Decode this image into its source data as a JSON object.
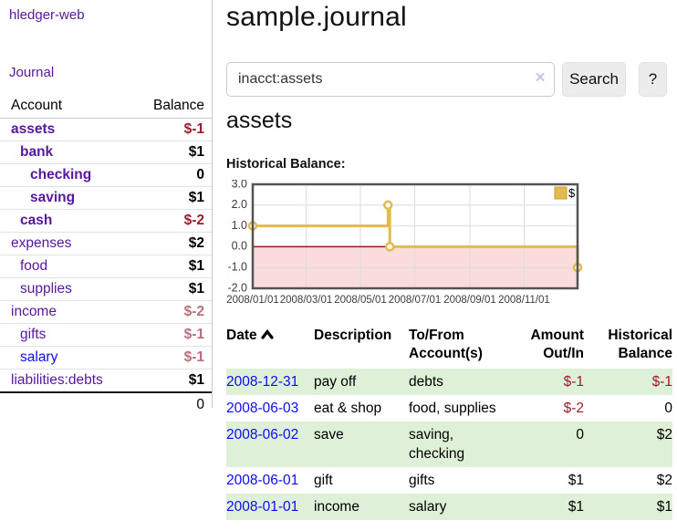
{
  "sidebar": {
    "brand": "hledger-web",
    "nav": {
      "journal": "Journal"
    },
    "accounts_table": {
      "headers": {
        "account": "Account",
        "balance": "Balance"
      },
      "rows": [
        {
          "name": "assets",
          "indent": 1,
          "bold": true,
          "link": "purple",
          "balance": "$-1",
          "balance_style": "neg-strong"
        },
        {
          "name": "bank",
          "indent": 2,
          "bold": true,
          "link": "purple",
          "balance": "$1",
          "balance_style": "pos"
        },
        {
          "name": "checking",
          "indent": 3,
          "bold": true,
          "link": "purple",
          "balance": "0",
          "balance_style": "pos"
        },
        {
          "name": "saving",
          "indent": 3,
          "bold": true,
          "link": "purple",
          "balance": "$1",
          "balance_style": "pos"
        },
        {
          "name": "cash",
          "indent": 2,
          "bold": true,
          "link": "purple",
          "balance": "$-2",
          "balance_style": "neg-strong"
        },
        {
          "name": "expenses",
          "indent": 1,
          "bold": false,
          "link": "purple",
          "balance": "$2",
          "balance_style": "pos"
        },
        {
          "name": "food",
          "indent": 2,
          "bold": false,
          "link": "purple",
          "balance": "$1",
          "balance_style": "pos"
        },
        {
          "name": "supplies",
          "indent": 2,
          "bold": false,
          "link": "purple",
          "balance": "$1",
          "balance_style": "pos"
        },
        {
          "name": "income",
          "indent": 1,
          "bold": false,
          "link": "purple",
          "balance": "$-2",
          "balance_style": "neg-soft"
        },
        {
          "name": "gifts",
          "indent": 2,
          "bold": false,
          "link": "purple",
          "balance": "$-1",
          "balance_style": "neg-soft"
        },
        {
          "name": "salary",
          "indent": 2,
          "bold": false,
          "link": "blue",
          "balance": "$-1",
          "balance_style": "neg-soft"
        },
        {
          "name": "liabilities:debts",
          "indent": 1,
          "bold": false,
          "link": "purple",
          "balance": "$1",
          "balance_style": "pos"
        }
      ],
      "total": "0"
    }
  },
  "header": {
    "title": "sample.journal"
  },
  "search": {
    "query": "inacct:assets",
    "clear_icon": "×",
    "button": "Search",
    "help_button": "?"
  },
  "account_page": {
    "heading": "assets",
    "chart_label": "Historical Balance:"
  },
  "chart_data": {
    "type": "line",
    "step": true,
    "title": "Historical Balance",
    "legend": "$",
    "legend_position": "top-right",
    "grid": true,
    "ylim": [
      -2,
      3
    ],
    "x_domain_days": [
      0,
      365
    ],
    "series": [
      {
        "name": "$",
        "color": "#e3ba4e",
        "points": [
          {
            "date": "2008-01-01",
            "day": 0,
            "value": 1
          },
          {
            "date": "2008-06-01",
            "day": 152,
            "value": 2
          },
          {
            "date": "2008-06-03",
            "day": 154,
            "value": 0
          },
          {
            "date": "2008-12-31",
            "day": 365,
            "value": -1
          }
        ]
      }
    ],
    "x_ticks": [
      {
        "day": 0,
        "label": "2008/01/01"
      },
      {
        "day": 60,
        "label": "2008/03/01"
      },
      {
        "day": 121,
        "label": "2008/05/01"
      },
      {
        "day": 182,
        "label": "2008/07/01"
      },
      {
        "day": 244,
        "label": "2008/09/01"
      },
      {
        "day": 305,
        "label": "2008/11/01"
      }
    ],
    "y_ticks": [
      {
        "value": 3,
        "label": "3.0"
      },
      {
        "value": 2,
        "label": "2.0"
      },
      {
        "value": 1,
        "label": "1.0"
      },
      {
        "value": 0,
        "label": "0.0"
      },
      {
        "value": -1,
        "label": "-1.0"
      },
      {
        "value": -2,
        "label": "-2.0"
      }
    ],
    "negative_region_fill": "#fbdcdc",
    "zero_line_color": "#8b1a1a",
    "border_color": "#545454",
    "grid_color": "#dcdcdc"
  },
  "register_table": {
    "headers": [
      {
        "label": "Date",
        "sorted_asc": true,
        "align": "left"
      },
      {
        "label": "Description",
        "align": "left"
      },
      {
        "label": "To/From Account(s)",
        "align": "left"
      },
      {
        "label": "Amount Out/In",
        "align": "right"
      },
      {
        "label": "Historical Balance",
        "align": "right"
      }
    ],
    "rows": [
      {
        "date": "2008-12-31",
        "description": "pay off",
        "to_from": "debts",
        "amount": "$-1",
        "amount_neg": true,
        "balance": "$-1",
        "balance_neg": true,
        "shade": true
      },
      {
        "date": "2008-06-03",
        "description": "eat & shop",
        "to_from": "food, supplies",
        "amount": "$-2",
        "amount_neg": true,
        "balance": "0",
        "balance_neg": false,
        "shade": false
      },
      {
        "date": "2008-06-02",
        "description": "save",
        "to_from": "saving, checking",
        "amount": "0",
        "amount_neg": false,
        "balance": "$2",
        "balance_neg": false,
        "shade": true
      },
      {
        "date": "2008-06-01",
        "description": "gift",
        "to_from": "gifts",
        "amount": "$1",
        "amount_neg": false,
        "balance": "$2",
        "balance_neg": false,
        "shade": false
      },
      {
        "date": "2008-01-01",
        "description": "income",
        "to_from": "salary",
        "amount": "$1",
        "amount_neg": false,
        "balance": "$1",
        "balance_neg": false,
        "shade": true
      }
    ]
  },
  "colors": {
    "link_purple": "#56179b",
    "link_blue": "#0d0dee",
    "negative_strong": "#9e1b32",
    "negative_soft": "#b9707c",
    "row_shade_green": "#dff0d8",
    "chart_line_gold": "#e3ba4e"
  }
}
